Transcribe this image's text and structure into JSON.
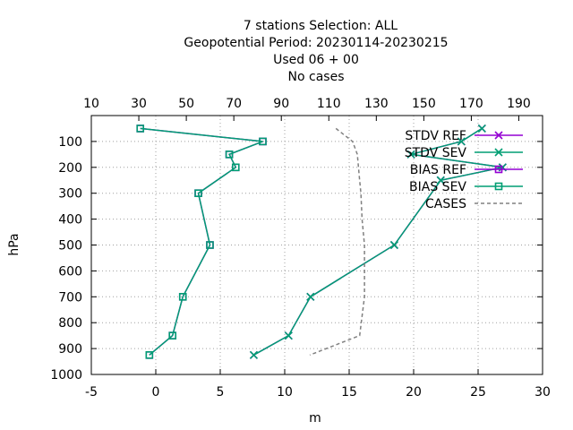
{
  "title_lines": [
    "7 stations Selection: ALL",
    "Geopotential  Period: 20230114-20230215",
    "Used  06 + 00",
    "No cases"
  ],
  "chart_data": {
    "type": "line",
    "xlabel": "m",
    "ylabel": "hPa",
    "xlim": [
      -5,
      30
    ],
    "ylim": [
      1000,
      0
    ],
    "x_ticks": [
      "-5",
      "0",
      "5",
      "10",
      "15",
      "20",
      "25",
      "30"
    ],
    "x_tick_values": [
      -5,
      0,
      5,
      10,
      15,
      20,
      25,
      30
    ],
    "x2lim": [
      10,
      200
    ],
    "x2_ticks": [
      "10",
      "30",
      "50",
      "70",
      "90",
      "110",
      "130",
      "150",
      "170",
      "190"
    ],
    "x2_tick_values": [
      10,
      30,
      50,
      70,
      90,
      110,
      130,
      150,
      170,
      190
    ],
    "y_ticks": [
      "100",
      "200",
      "300",
      "400",
      "500",
      "600",
      "700",
      "800",
      "900",
      "1000"
    ],
    "y_tick_values": [
      100,
      200,
      300,
      400,
      500,
      600,
      700,
      800,
      900,
      1000
    ],
    "grid": true,
    "legend_position": "top-right",
    "series": [
      {
        "name": "STDV REF",
        "axis": "bottom",
        "color": "#9400d3",
        "marker": "x",
        "x": [
          25.3,
          23.7,
          19.8,
          26.9,
          22.1,
          18.5,
          12.0,
          10.3,
          7.6
        ],
        "y": [
          50,
          100,
          150,
          200,
          250,
          500,
          700,
          850,
          925
        ]
      },
      {
        "name": "STDV SEV",
        "axis": "bottom",
        "color": "#009e73",
        "marker": "x",
        "x": [
          25.3,
          23.7,
          19.8,
          26.9,
          22.1,
          18.5,
          12.0,
          10.3,
          7.6
        ],
        "y": [
          50,
          100,
          150,
          200,
          250,
          500,
          700,
          850,
          925
        ]
      },
      {
        "name": "BIAS REF",
        "axis": "bottom",
        "color": "#9400d3",
        "marker": "square",
        "x": [
          -1.2,
          8.3,
          5.7,
          6.2,
          3.3,
          4.2,
          2.1,
          1.3,
          -0.5
        ],
        "y": [
          50,
          100,
          150,
          200,
          300,
          500,
          700,
          850,
          925
        ]
      },
      {
        "name": "BIAS SEV",
        "axis": "bottom",
        "color": "#009e73",
        "marker": "square",
        "x": [
          -1.2,
          8.3,
          5.7,
          6.2,
          3.3,
          4.2,
          2.1,
          1.3,
          -0.5
        ],
        "y": [
          50,
          100,
          150,
          200,
          300,
          500,
          700,
          850,
          925
        ]
      },
      {
        "name": "CASES",
        "axis": "top",
        "color": "#808080",
        "dashed": true,
        "x": [
          113,
          120,
          122,
          122.5,
          123,
          123.5,
          124,
          125,
          125,
          123,
          102
        ],
        "y": [
          50,
          100,
          150,
          200,
          250,
          300,
          400,
          500,
          700,
          850,
          925
        ]
      }
    ]
  }
}
